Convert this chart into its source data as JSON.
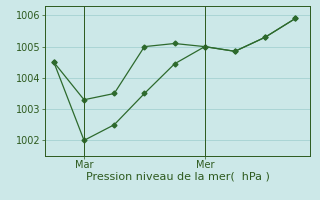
{
  "line1_x": [
    0,
    1,
    2,
    3,
    4,
    5,
    6,
    7,
    8
  ],
  "line1_y": [
    1004.5,
    1003.3,
    1003.5,
    1005.0,
    1005.1,
    1005.0,
    1004.85,
    1005.3,
    1005.9
  ],
  "line2_x": [
    0,
    1,
    2,
    3,
    4,
    5,
    6,
    7,
    8
  ],
  "line2_y": [
    1004.5,
    1002.0,
    1002.5,
    1003.5,
    1004.45,
    1005.0,
    1004.85,
    1005.3,
    1005.9
  ],
  "line_color": "#2d6a2d",
  "bg_color": "#cce8e8",
  "grid_color": "#9ecece",
  "axis_color": "#2d5a1e",
  "xlabel": "Pression niveau de la mer(  hPa )",
  "ylim": [
    1001.5,
    1006.3
  ],
  "yticks": [
    1002,
    1003,
    1004,
    1005,
    1006
  ],
  "xtick_positions": [
    1,
    5
  ],
  "xtick_labels": [
    "Mar",
    "Mer"
  ],
  "vline_positions": [
    1,
    5
  ],
  "marker": "D",
  "marker_size": 2.5,
  "xlabel_fontsize": 8,
  "tick_fontsize": 7
}
